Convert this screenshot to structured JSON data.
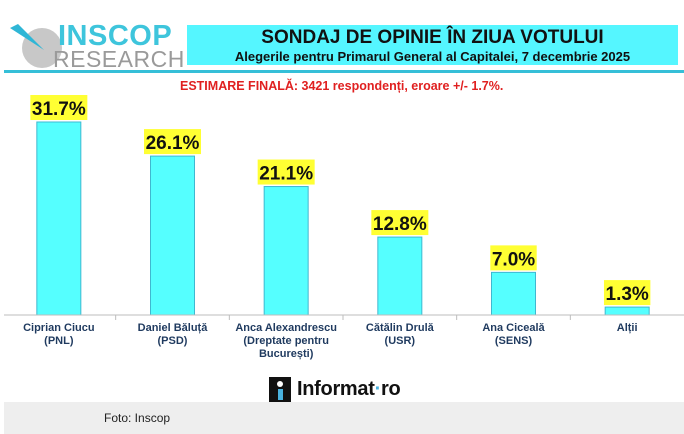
{
  "logo": {
    "name_top": "INSCOP",
    "name_bottom": "RESEARCH",
    "icon": "radar-dish-icon"
  },
  "header": {
    "title": "SONDAJ DE OPINIE ÎN ZIUA VOTULUI",
    "subtitle": "Alegerile pentru Primarul General al Capitalei, 7 decembrie 2025"
  },
  "estimate_note": "ESTIMARE FINALĂ: 3421 respondenți, eroare +/- 1.7%.",
  "colors": {
    "bar": "#55ffff",
    "bar_border": "#3fb8d0",
    "label_bg": "#ffff33",
    "header_bg": "#55f6ff",
    "accent": "#35bfd8",
    "note": "#e02020",
    "category_text": "#1f3a5f"
  },
  "chart_data": {
    "type": "bar",
    "title": "SONDAJ DE OPINIE ÎN ZIUA VOTULUI",
    "subtitle": "Alegerile pentru Primarul General al Capitalei, 7 decembrie 2025",
    "xlabel": "",
    "ylabel": "",
    "ylim": [
      0,
      31.7
    ],
    "grid": false,
    "legend": "none",
    "categories": [
      [
        "Ciprian Ciucu",
        "(PNL)"
      ],
      [
        "Daniel Băluță",
        "(PSD)"
      ],
      [
        "Anca Alexandrescu",
        "(Dreptate pentru",
        "București)"
      ],
      [
        "Cătălin Drulă",
        "(USR)"
      ],
      [
        "Ana Ciceală",
        "(SENS)"
      ],
      [
        "Alții"
      ]
    ],
    "values": [
      31.7,
      26.1,
      21.1,
      12.8,
      7.0,
      1.3
    ],
    "value_labels": [
      "31.7%",
      "26.1%",
      "21.1%",
      "12.8%",
      "7.0%",
      "1.3%"
    ]
  },
  "watermark": {
    "brand": "Informat",
    "separator": "·",
    "tld": "ro"
  },
  "footer": {
    "caption": "Foto: Inscop"
  }
}
